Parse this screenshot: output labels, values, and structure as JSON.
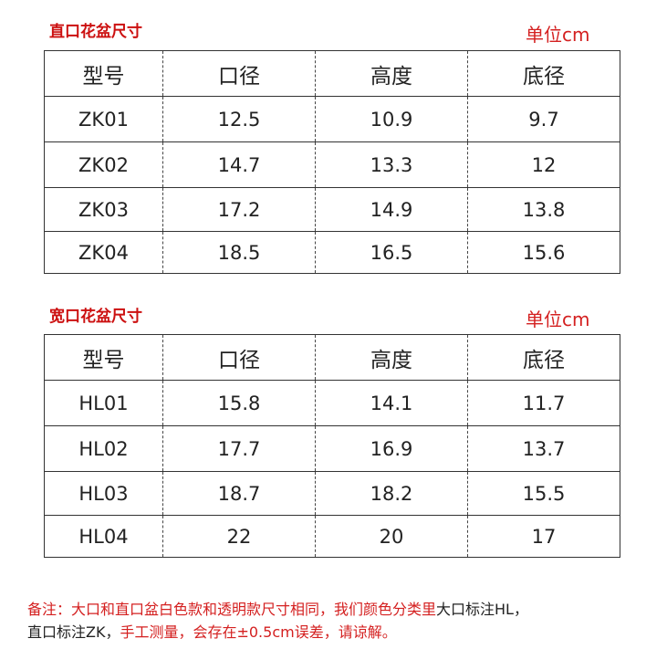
{
  "sections": [
    {
      "title": "直口花盆尺寸",
      "unit": "单位cm",
      "headers": [
        "型号",
        "口径",
        "高度",
        "底径"
      ],
      "rows": [
        [
          "ZK01",
          "12.5",
          "10.9",
          "9.7"
        ],
        [
          "ZK02",
          "14.7",
          "13.3",
          "12"
        ],
        [
          "ZK03",
          "17.2",
          "14.9",
          "13.8"
        ],
        [
          "ZK04",
          "18.5",
          "16.5",
          "15.6"
        ]
      ]
    },
    {
      "title": "宽口花盆尺寸",
      "unit": "单位cm",
      "headers": [
        "型号",
        "口径",
        "高度",
        "底径"
      ],
      "rows": [
        [
          "HL01",
          "15.8",
          "14.1",
          "11.7"
        ],
        [
          "HL02",
          "17.7",
          "16.9",
          "13.7"
        ],
        [
          "HL03",
          "18.7",
          "18.2",
          "15.5"
        ],
        [
          "HL04",
          "22",
          "20",
          "17"
        ]
      ]
    }
  ],
  "note": {
    "lines": [
      [
        {
          "text": "备注：大口和直口盆白色款和透明款尺寸相同，我们颜色分类里",
          "color": "#d42020"
        },
        {
          "text": "大口标注HL，",
          "color": "#222222"
        }
      ],
      [
        {
          "text": "直口标注ZK，",
          "color": "#222222"
        },
        {
          "text": "手工测量，会存在±0.5cm误差，请谅解。",
          "color": "#d42020"
        }
      ]
    ]
  }
}
